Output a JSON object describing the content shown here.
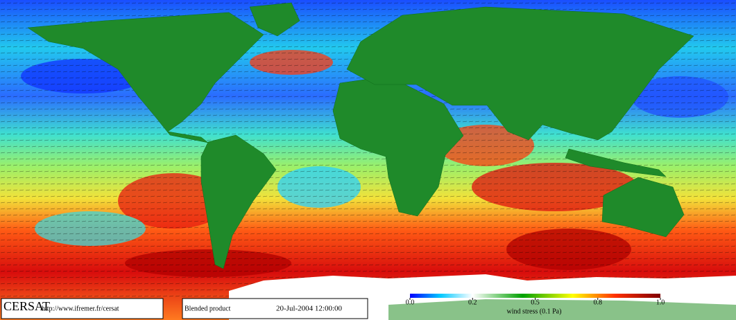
{
  "footer": {
    "logo": "CERSAT",
    "url": "http://www.ifremer.fr/cersat",
    "product": "Blended product",
    "date": "20-Jul-2004 12:00:00"
  },
  "colorbar": {
    "label": "wind stress (0.1 Pa)",
    "ticks": [
      {
        "value": 0,
        "label": "0.0"
      },
      {
        "value": 0.2,
        "label": "0.2"
      },
      {
        "value": 0.5,
        "label": "0.5"
      },
      {
        "value": 0.8,
        "label": "0.8"
      },
      {
        "value": 1,
        "label": "1.0"
      }
    ]
  }
}
